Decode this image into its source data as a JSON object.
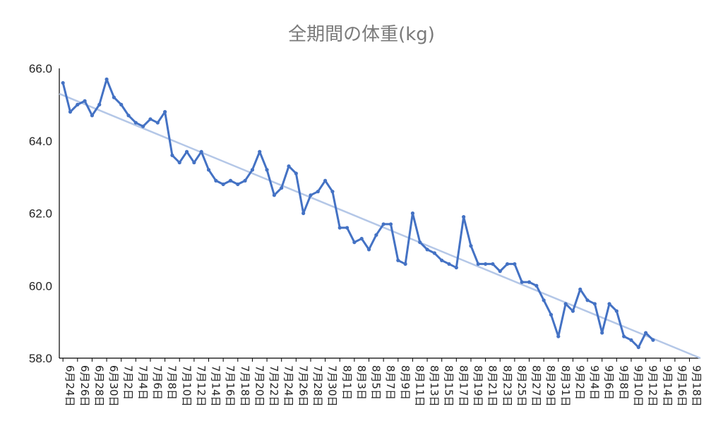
{
  "chart_data": {
    "type": "line",
    "title": "全期間の体重(kg)",
    "xlabel": "",
    "ylabel": "",
    "ylim": [
      58.0,
      66.0
    ],
    "y_ticks": [
      "58.0",
      "60.0",
      "62.0",
      "64.0",
      "66.0"
    ],
    "grid": false,
    "legend": "none",
    "colors": {
      "series": "#4472c4",
      "trend": "#b4c7e7"
    },
    "x_tick_labels": [
      "6月24日",
      "6月26日",
      "6月28日",
      "6月30日",
      "7月2日",
      "7月4日",
      "7月6日",
      "7月8日",
      "7月10日",
      "7月12日",
      "7月14日",
      "7月16日",
      "7月18日",
      "7月20日",
      "7月22日",
      "7月24日",
      "7月26日",
      "7月28日",
      "7月30日",
      "8月1日",
      "8月3日",
      "8月5日",
      "8月7日",
      "8月9日",
      "8月11日",
      "8月13日",
      "8月15日",
      "8月17日",
      "8月19日",
      "8月21日",
      "8月23日",
      "8月25日",
      "8月27日",
      "8月29日",
      "8月31日",
      "9月2日",
      "9月4日",
      "9月6日",
      "9月8日",
      "9月10日",
      "9月12日",
      "9月14日",
      "9月16日",
      "9月18日"
    ],
    "series": [
      {
        "values": [
          65.6,
          64.8,
          65.0,
          65.1,
          64.7,
          65.0,
          65.7,
          65.2,
          65.0,
          64.7,
          64.5,
          64.4,
          64.6,
          64.5,
          64.8,
          63.6,
          63.4,
          63.7,
          63.4,
          63.7,
          63.2,
          62.9,
          62.8,
          62.9,
          62.8,
          62.9,
          63.2,
          63.7,
          63.2,
          62.5,
          62.7,
          63.3,
          63.1,
          62.0,
          62.5,
          62.6,
          62.9,
          62.6,
          61.6,
          61.6,
          61.2,
          61.3,
          61.0,
          61.4,
          61.7,
          61.7,
          60.7,
          60.6,
          62.0,
          61.2,
          61.0,
          60.9,
          60.7,
          60.6,
          60.5,
          61.9,
          61.1,
          60.6,
          60.6,
          60.6,
          60.4,
          60.6,
          60.6,
          60.1,
          60.1,
          60.0,
          59.6,
          59.2,
          58.6,
          59.5,
          59.3,
          59.9,
          59.6,
          59.5,
          58.7,
          59.5,
          59.3,
          58.6,
          58.5,
          58.3,
          58.7,
          58.5
        ]
      }
    ],
    "trendline": {
      "start": 65.3,
      "end": 58.0
    }
  }
}
